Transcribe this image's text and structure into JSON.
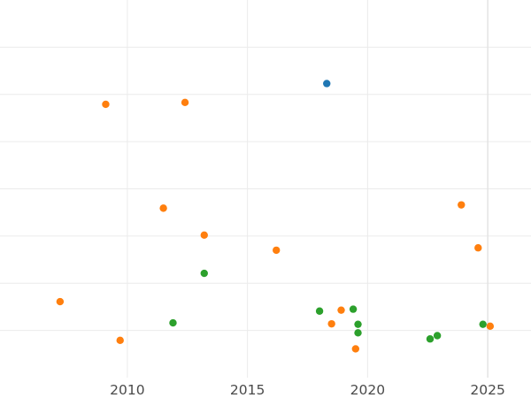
{
  "chart_data": {
    "type": "scatter",
    "title": "",
    "xlabel": "",
    "ylabel": "",
    "xlim": [
      2004.7,
      2026.8
    ],
    "ylim": [
      0,
      8
    ],
    "grid": true,
    "legend": "none",
    "x_ticks": [
      2010,
      2015,
      2020,
      2025
    ],
    "x_tick_labels": [
      "2010",
      "2015",
      "2020",
      "2025"
    ],
    "y_gridlines": [
      1,
      2,
      3,
      4,
      5,
      6,
      7
    ],
    "series": [
      {
        "color": "#1f77b4",
        "points": [
          {
            "x": 2018.3,
            "y": 6.23
          }
        ]
      },
      {
        "color": "#ff7f0e",
        "points": [
          {
            "x": 2009.1,
            "y": 5.79
          },
          {
            "x": 2012.4,
            "y": 5.83
          },
          {
            "x": 2011.5,
            "y": 3.59
          },
          {
            "x": 2013.2,
            "y": 3.02
          },
          {
            "x": 2016.2,
            "y": 2.7
          },
          {
            "x": 2007.2,
            "y": 1.61
          },
          {
            "x": 2009.7,
            "y": 0.79
          },
          {
            "x": 2018.9,
            "y": 1.43
          },
          {
            "x": 2018.5,
            "y": 1.14
          },
          {
            "x": 2019.5,
            "y": 0.61
          },
          {
            "x": 2023.9,
            "y": 3.66
          },
          {
            "x": 2024.6,
            "y": 2.75
          },
          {
            "x": 2025.1,
            "y": 1.09
          }
        ]
      },
      {
        "color": "#2ca02c",
        "points": [
          {
            "x": 2013.2,
            "y": 2.21
          },
          {
            "x": 2011.9,
            "y": 1.16
          },
          {
            "x": 2018.0,
            "y": 1.41
          },
          {
            "x": 2019.4,
            "y": 1.45
          },
          {
            "x": 2019.6,
            "y": 1.13
          },
          {
            "x": 2019.6,
            "y": 0.95
          },
          {
            "x": 2022.6,
            "y": 0.82
          },
          {
            "x": 2022.9,
            "y": 0.89
          },
          {
            "x": 2024.8,
            "y": 1.13
          }
        ]
      }
    ]
  }
}
